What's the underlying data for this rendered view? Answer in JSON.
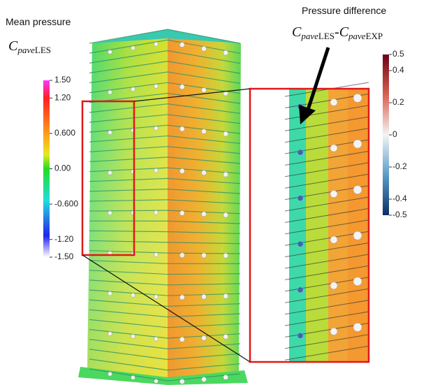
{
  "left_panel": {
    "title": "Mean pressure",
    "symbol": {
      "main": "C",
      "sub": "pave",
      "tag": "LES"
    },
    "colorbar": {
      "lim": [
        -1.5,
        1.5
      ],
      "ticks": [
        {
          "value": 1.5,
          "label": "1.50"
        },
        {
          "value": 1.2,
          "label": "1.20"
        },
        {
          "value": 0.6,
          "label": "0.600"
        },
        {
          "value": 0,
          "label": "0.00"
        },
        {
          "value": -0.6,
          "label": "-0.600"
        },
        {
          "value": -1.2,
          "label": "-1.20"
        },
        {
          "value": -1.5,
          "label": "-1.50"
        }
      ]
    }
  },
  "right_panel": {
    "title": "Pressure difference",
    "symbol": {
      "main": "C",
      "sub": "pave",
      "tag": "LES",
      "minus": "-",
      "main2": "C",
      "sub2": "pave",
      "tag2": "EXP"
    },
    "colorbar": {
      "lim": [
        -0.5,
        0.5
      ],
      "ticks": [
        0.5,
        0.4,
        0.2,
        0,
        -0.2,
        -0.4,
        -0.5
      ]
    }
  }
}
